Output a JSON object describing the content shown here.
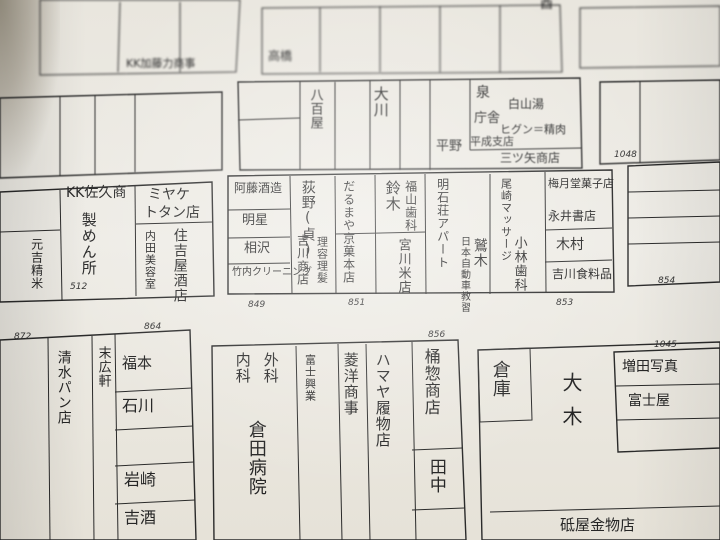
{
  "map": {
    "top_row": [
      "KK加藤力商事",
      "高橋",
      "大川",
      "八百屋",
      "泉",
      "庁舎",
      "白山湯",
      "ヒグン＝精肉",
      "平野",
      "平成支店",
      "三ツ矢商店"
    ],
    "mid_left": [
      "KK佐久商",
      "製めん所",
      "元吉精米",
      "ミヤケ",
      "トタン店",
      "内田美容室",
      "住吉屋酒店"
    ],
    "mid_center": [
      "阿藤酒造",
      "明星",
      "相沢",
      "竹内クリーニング",
      "荻野(貞)",
      "吉川商店",
      "理容理髪",
      "だるまや京菓本店",
      "鈴木",
      "福山歯科",
      "宮川米店"
    ],
    "mid_right": [
      "明石荘アパート",
      "日本自動車教習",
      "鷲木",
      "尾崎マッサージ",
      "小林歯科",
      "梅月堂菓子店",
      "永井書店",
      "木村",
      "吉川食料品"
    ],
    "bottom": [
      "福本",
      "石川",
      "清水パン店",
      "末広軒",
      "岩崎",
      "吉酒",
      "外科",
      "内科",
      "倉田病院",
      "菱洋商事",
      "富士興業",
      "ハマヤ履物店",
      "桶惣商店",
      "田中",
      "倉庫",
      "大木",
      "増田写真",
      "富士屋",
      "砥屋金物店"
    ],
    "lot_numbers": [
      "849",
      "851",
      "853",
      "854",
      "856",
      "864",
      "1045",
      "1048",
      "512",
      "872"
    ],
    "page_header": "酉"
  }
}
